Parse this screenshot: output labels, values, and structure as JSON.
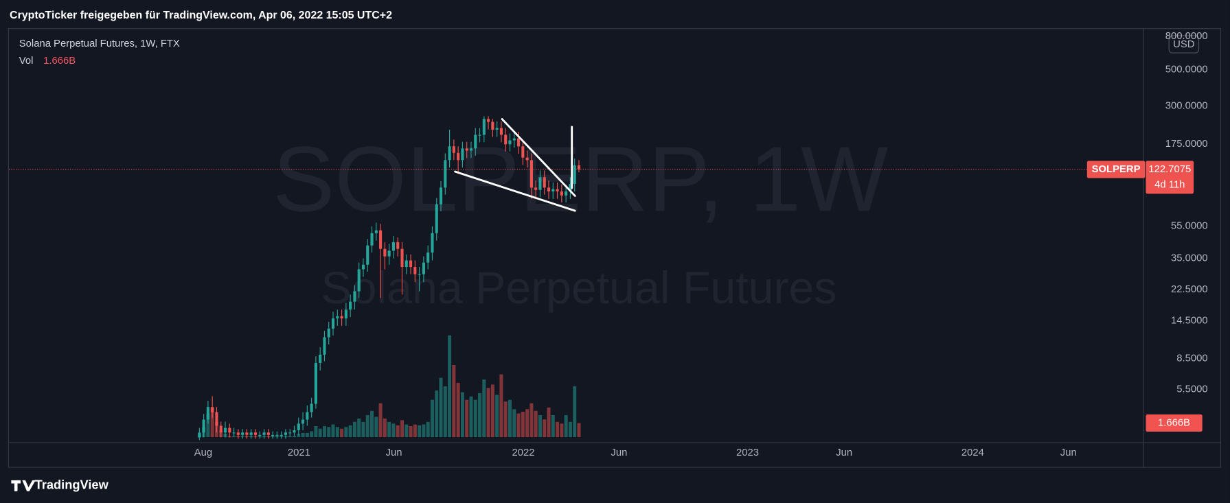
{
  "header": {
    "title": "CryptoTicker freigegeben für TradingView.com, Apr 06, 2022 15:05 UTC+2"
  },
  "chart_data": {
    "type": "candlestick",
    "title": "Solana Perpetual Futures, 1W, FTX",
    "description": "Solana Perpetual Futures",
    "watermark": "SOLPERP, 1W",
    "symbol": "SOLPERP",
    "currency": "USD",
    "countdown": "4d 11h",
    "up_color": "#26a69a",
    "down_color": "#ef5350",
    "open": [
      2.8,
      3.0,
      3.6,
      4.3,
      4.0,
      3.3,
      3.0,
      3.2,
      3.0,
      3.0,
      2.9,
      3.0,
      2.9,
      3.0,
      2.9,
      2.9,
      3.0,
      2.9,
      2.9,
      2.9,
      2.9,
      3.0,
      3.0,
      3.1,
      3.4,
      3.6,
      4.0,
      4.5,
      8.0,
      9.0,
      11.5,
      13,
      15,
      15.5,
      15,
      17,
      19,
      22,
      30,
      32,
      42,
      50,
      52,
      40,
      36,
      39,
      44,
      40,
      31,
      34,
      31,
      28,
      28,
      33,
      38,
      50,
      75,
      95,
      140,
      170,
      155,
      140,
      165,
      160,
      165,
      200,
      200,
      250,
      240,
      215,
      220,
      200,
      175,
      185,
      190,
      170,
      145,
      140,
      95,
      92,
      110,
      95,
      90,
      93,
      90,
      85,
      90,
      100,
      130
    ],
    "high": [
      3.2,
      3.9,
      4.7,
      5.0,
      4.3,
      3.5,
      3.5,
      3.4,
      3.2,
      3.15,
      3.15,
      3.15,
      3.15,
      3.15,
      3.05,
      3.15,
      3.15,
      3.05,
      3.05,
      3.05,
      3.15,
      3.15,
      3.3,
      3.7,
      4.0,
      4.4,
      4.9,
      8.8,
      10,
      12.6,
      14.3,
      16.5,
      17,
      17,
      18.7,
      21,
      24,
      33,
      35,
      46,
      55,
      58,
      57,
      44,
      43,
      48,
      47,
      44,
      37,
      37,
      34,
      31,
      36,
      42,
      55,
      82,
      104,
      154,
      215,
      187,
      170,
      181,
      181,
      181,
      220,
      220,
      260,
      260,
      250,
      242,
      242,
      220,
      204,
      209,
      209,
      187,
      160,
      154,
      105,
      121,
      121,
      105,
      102,
      102,
      99,
      99,
      110,
      143,
      140
    ],
    "low": [
      2.7,
      2.8,
      3.4,
      3.7,
      3.0,
      2.8,
      2.8,
      2.8,
      2.85,
      2.75,
      2.75,
      2.75,
      2.75,
      2.75,
      2.75,
      2.75,
      2.75,
      2.75,
      2.75,
      2.75,
      2.75,
      2.85,
      2.85,
      2.9,
      3.1,
      3.3,
      3.7,
      4.2,
      7.2,
      8.2,
      10.4,
      11.8,
      13.5,
      13.5,
      13.5,
      15.3,
      17,
      20,
      27,
      29,
      38,
      45,
      20,
      30,
      32,
      35,
      36,
      21,
      28,
      28,
      25,
      22,
      25,
      30,
      34,
      45,
      68,
      86,
      126,
      140,
      115,
      126,
      144,
      144,
      149,
      180,
      180,
      216,
      194,
      194,
      180,
      158,
      158,
      167,
      153,
      131,
      126,
      81,
      83,
      83,
      86,
      81,
      81,
      81,
      77,
      77,
      81,
      90,
      118
    ],
    "close": [
      3.0,
      3.6,
      4.3,
      4.0,
      3.3,
      3.0,
      3.2,
      3.0,
      3.0,
      2.9,
      3.0,
      2.9,
      3.0,
      2.9,
      2.9,
      3.0,
      2.9,
      2.9,
      2.9,
      2.9,
      3.0,
      3.0,
      3.1,
      3.4,
      3.6,
      4.0,
      4.5,
      8.0,
      9.0,
      11.5,
      13,
      15,
      15.5,
      15,
      17,
      19,
      22,
      30,
      32,
      42,
      50,
      52,
      40,
      36,
      39,
      44,
      40,
      31,
      34,
      31,
      28,
      28,
      33,
      38,
      50,
      75,
      95,
      140,
      170,
      155,
      140,
      165,
      160,
      165,
      200,
      200,
      250,
      240,
      215,
      220,
      200,
      175,
      185,
      190,
      170,
      145,
      140,
      95,
      92,
      110,
      95,
      90,
      93,
      90,
      85,
      90,
      100,
      130,
      122.7075
    ],
    "volume": {
      "name": "Vol",
      "values": [
        0.3,
        1.2,
        2.8,
        3.5,
        1.8,
        0.8,
        0.4,
        0.15,
        0.15,
        0.15,
        0.15,
        0.15,
        0.15,
        0.15,
        0.15,
        0.15,
        0.15,
        0.15,
        0.15,
        0.15,
        0.15,
        0.15,
        0.15,
        0.4,
        0.5,
        0.5,
        0.7,
        1.3,
        1.0,
        1.3,
        1.2,
        1.5,
        1.2,
        1.0,
        1.2,
        1.4,
        1.8,
        2.2,
        1.8,
        2.6,
        3.1,
        2.4,
        4.0,
        2.2,
        1.8,
        1.6,
        1.4,
        2.0,
        1.5,
        1.3,
        1.5,
        1.4,
        1.5,
        1.8,
        4.4,
        5.5,
        7.0,
        6.0,
        12.0,
        8.5,
        6.4,
        5.3,
        4.4,
        4.8,
        4.4,
        5.2,
        6.8,
        5.8,
        6.2,
        5.0,
        7.4,
        4.2,
        4.4,
        3.3,
        2.8,
        3.0,
        3.3,
        4.0,
        3.1,
        2.6,
        2.1,
        3.5,
        2.6,
        1.8,
        1.6,
        2.6,
        1.8,
        6.0,
        1.666
      ],
      "last_label": "1.666B"
    },
    "log_scale": true,
    "ylim": [
      2.6,
      890
    ],
    "yticks": [
      {
        "value": 800,
        "label": "800.0000"
      },
      {
        "value": 500,
        "label": "500.0000"
      },
      {
        "value": 300,
        "label": "300.0000"
      },
      {
        "value": 175,
        "label": "175.0000"
      },
      {
        "value": 55,
        "label": "55.0000"
      },
      {
        "value": 35,
        "label": "35.0000"
      },
      {
        "value": 22.5,
        "label": "22.5000"
      },
      {
        "value": 14.5,
        "label": "14.5000"
      },
      {
        "value": 8.5,
        "label": "8.5000"
      },
      {
        "value": 5.5,
        "label": "5.5000"
      }
    ],
    "xlim": [
      -42.9,
      218.9
    ],
    "xticks": [
      {
        "value": 0.9,
        "label": "Aug"
      },
      {
        "value": 23.1,
        "label": "2021"
      },
      {
        "value": 45.1,
        "label": "Jun"
      },
      {
        "value": 75.1,
        "label": "2022"
      },
      {
        "value": 97.3,
        "label": "Jun"
      },
      {
        "value": 127.1,
        "label": "2023"
      },
      {
        "value": 149.5,
        "label": "Jun"
      },
      {
        "value": 179.3,
        "label": "2024"
      },
      {
        "value": 201.5,
        "label": "Jun"
      }
    ]
  },
  "footer": {
    "brand": "TradingView"
  }
}
